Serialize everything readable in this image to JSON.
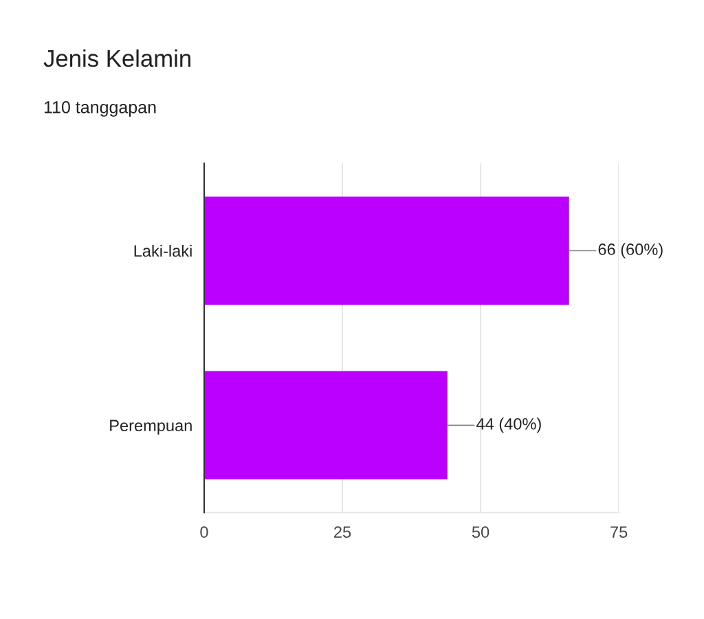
{
  "chart_data": {
    "type": "bar",
    "orientation": "horizontal",
    "title": "Jenis Kelamin",
    "subtitle": "110 tanggapan",
    "categories": [
      "Laki-laki",
      "Perempuan"
    ],
    "values": [
      66,
      44
    ],
    "value_labels": [
      "66 (60%)",
      "44 (40%)"
    ],
    "color": "#bb00ff",
    "xlim": [
      0,
      75
    ],
    "xticks": [
      0,
      25,
      50,
      75
    ],
    "grid": "x"
  }
}
